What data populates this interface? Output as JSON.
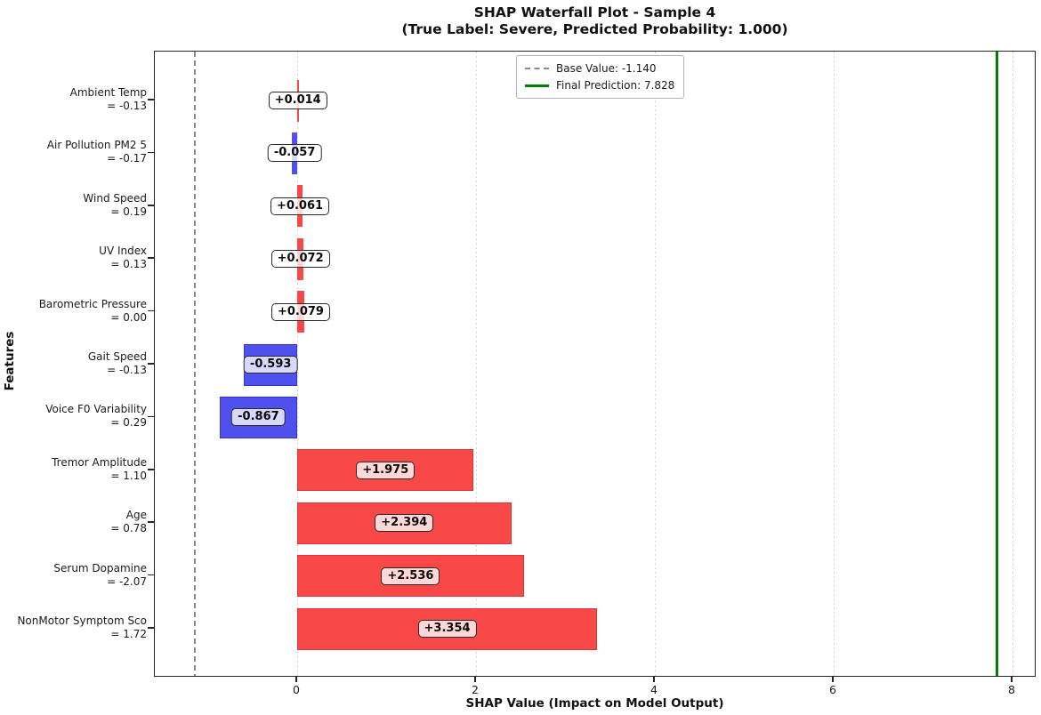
{
  "chart_data": {
    "type": "bar",
    "orientation": "horizontal",
    "title": "SHAP Waterfall Plot - Sample 4",
    "subtitle": "(True Label: Severe, Predicted Probability: 1.000)",
    "xlabel": "SHAP Value (Impact on Model Output)",
    "ylabel": "Features",
    "xlim": [
      -1.59,
      8.26
    ],
    "xticks": [
      0,
      2,
      4,
      6,
      8
    ],
    "xtick_labels": [
      "0",
      "2",
      "4",
      "6",
      "8"
    ],
    "grid": "vertical dotted lines at x ticks",
    "base_value": -1.14,
    "final_prediction": 7.828,
    "legend": {
      "position": "upper center-right",
      "items": [
        {
          "label": "Base Value: -1.140",
          "line_style": "dashed",
          "color": "#8a8a8a"
        },
        {
          "label": "Final Prediction: 7.828",
          "line_style": "solid",
          "color": "#008000"
        }
      ]
    },
    "features": [
      {
        "name": "Ambient Temp",
        "feature_value": "= -0.13",
        "shap": 0.014,
        "label": "+0.014"
      },
      {
        "name": "Air Pollution PM2 5",
        "feature_value": "= -0.17",
        "shap": -0.057,
        "label": "-0.057"
      },
      {
        "name": "Wind Speed",
        "feature_value": "= 0.19",
        "shap": 0.061,
        "label": "+0.061"
      },
      {
        "name": "UV Index",
        "feature_value": "= 0.13",
        "shap": 0.072,
        "label": "+0.072"
      },
      {
        "name": "Barometric Pressure",
        "feature_value": "= 0.00",
        "shap": 0.079,
        "label": "+0.079"
      },
      {
        "name": "Gait Speed",
        "feature_value": "= -0.13",
        "shap": -0.593,
        "label": "-0.593"
      },
      {
        "name": "Voice F0 Variability",
        "feature_value": "= 0.29",
        "shap": -0.867,
        "label": "-0.867"
      },
      {
        "name": "Tremor Amplitude",
        "feature_value": "= 1.10",
        "shap": 1.975,
        "label": "+1.975"
      },
      {
        "name": "Age",
        "feature_value": "= 0.78",
        "shap": 2.394,
        "label": "+2.394"
      },
      {
        "name": "Serum Dopamine",
        "feature_value": "= -2.07",
        "shap": 2.536,
        "label": "+2.536"
      },
      {
        "name": "NonMotor Symptom Sco",
        "feature_value": "= 1.72",
        "shap": 3.354,
        "label": "+3.354"
      }
    ],
    "colors": {
      "positive_fill": "#f84848",
      "positive_edge": "#de3434",
      "negative_fill": "#5050ee",
      "negative_edge": "#3434cf",
      "base_line": "#8a8a8a",
      "final_line": "#008000",
      "gridline": "#d2d2d2",
      "spine": "#262626"
    }
  }
}
